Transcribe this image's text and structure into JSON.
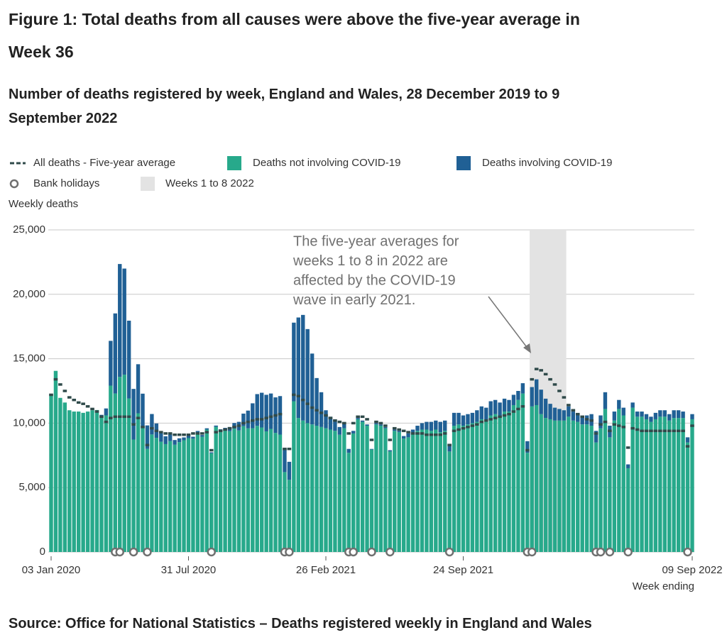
{
  "chart_data": {
    "type": "bar",
    "title": "Figure 1: Total deaths from all causes were above the five-year average in Week 36",
    "subtitle": "Number of deaths registered by week, England and Wales, 28 December 2019 to 9 September 2022",
    "y_label": "Weekly deaths",
    "x_label": "Week ending",
    "source": "Source: Office for National Statistics – Deaths registered weekly in England and Wales",
    "annotation": [
      "The five-year averages for",
      "weeks 1 to 8 in 2022 are",
      "affected by the COVID-19",
      "wave in early 2021."
    ],
    "stacked": true,
    "grid": true,
    "categories": [
      "03 Jan 2020",
      null,
      null,
      null,
      null,
      null,
      null,
      null,
      null,
      null,
      null,
      null,
      null,
      null,
      null,
      null,
      null,
      null,
      null,
      null,
      null,
      null,
      null,
      null,
      null,
      null,
      null,
      null,
      null,
      null,
      "31 Jul 2020",
      null,
      null,
      null,
      null,
      null,
      null,
      null,
      null,
      null,
      null,
      null,
      null,
      null,
      null,
      null,
      null,
      null,
      null,
      null,
      null,
      null,
      null,
      null,
      null,
      null,
      null,
      null,
      null,
      null,
      "26 Feb 2021",
      null,
      null,
      null,
      null,
      null,
      null,
      null,
      null,
      null,
      null,
      null,
      null,
      null,
      null,
      null,
      null,
      null,
      null,
      null,
      null,
      null,
      null,
      null,
      null,
      null,
      null,
      null,
      null,
      null,
      "24 Sep 2021",
      null,
      null,
      null,
      null,
      null,
      null,
      null,
      null,
      null,
      null,
      null,
      null,
      null,
      null,
      null,
      null,
      null,
      null,
      null,
      null,
      null,
      null,
      null,
      null,
      null,
      null,
      null,
      null,
      null,
      null,
      null,
      null,
      null,
      null,
      null,
      null,
      null,
      null,
      null,
      null,
      null,
      null,
      null,
      null,
      null,
      null,
      null,
      null,
      null,
      "09 Sep 2022"
    ],
    "ylim": [
      0,
      25000
    ],
    "yticks": [
      0,
      {
        "value": 5000,
        "label": "5,000"
      },
      {
        "value": 10000,
        "label": "10,000"
      },
      {
        "value": 15000,
        "label": "15,000"
      },
      {
        "value": 20000,
        "label": "20,000"
      },
      {
        "value": 25000,
        "label": "25,000"
      }
    ],
    "highlight": {
      "name": "Weeks 1 to 8 2022",
      "from": 105,
      "to": 112,
      "color": "#e3e3e3"
    },
    "series": [
      {
        "name": "All deaths - Five-year average",
        "kind": "dash",
        "color": "#2f4a4a",
        "values": [
          12200,
          13400,
          13000,
          12500,
          12000,
          11800,
          11600,
          11500,
          11300,
          11100,
          10900,
          10500,
          10100,
          10400,
          10500,
          10500,
          10500,
          10500,
          9900,
          10400,
          9700,
          8300,
          9600,
          9400,
          9300,
          9200,
          9200,
          9100,
          9100,
          9100,
          9100,
          9200,
          9200,
          9200,
          9300,
          7900,
          9300,
          9400,
          9500,
          9600,
          9700,
          9800,
          10000,
          10100,
          10200,
          10300,
          10300,
          10400,
          10500,
          10600,
          10700,
          8000,
          8000,
          12200,
          12100,
          11800,
          11500,
          11200,
          11000,
          10800,
          10600,
          10400,
          10200,
          10100,
          10000,
          9200,
          10000,
          10500,
          10500,
          10300,
          8700,
          10100,
          10000,
          9800,
          8700,
          9600,
          9500,
          9400,
          9300,
          9200,
          9200,
          9200,
          9100,
          9100,
          9100,
          9100,
          9200,
          8300,
          9400,
          9500,
          9600,
          9700,
          9800,
          9900,
          10100,
          10200,
          10300,
          10400,
          10500,
          10600,
          10700,
          10900,
          11100,
          11300,
          7900,
          13400,
          14200,
          14100,
          13800,
          13400,
          13000,
          12500,
          12000,
          11400,
          11000,
          10700,
          10500,
          10300,
          10200,
          9200,
          9900,
          10100,
          9400,
          9900,
          9800,
          9700,
          8100,
          9600,
          9500,
          9400,
          9400,
          9400,
          9400,
          9400,
          9400,
          9400,
          9400,
          9400,
          9400,
          8200,
          9800
        ]
      },
      {
        "name": "Deaths not involving COVID-19",
        "kind": "bar",
        "color": "#27a98b",
        "values": [
          12254,
          14058,
          11962,
          11600,
          11000,
          10900,
          10900,
          10800,
          10900,
          11000,
          11019,
          10545,
          10602,
          12912,
          12303,
          13593,
          13760,
          11918,
          8727,
          10763,
          9699,
          8002,
          9121,
          8862,
          8556,
          8373,
          8608,
          8324,
          8528,
          8674,
          8839,
          8794,
          9253,
          8942,
          9500,
          7661,
          9712,
          9384,
          9419,
          9379,
          9573,
          9431,
          9763,
          9595,
          9602,
          9788,
          9662,
          9363,
          9552,
          9244,
          9114,
          6200,
          5600,
          11700,
          10400,
          10200,
          10000,
          9900,
          9800,
          9700,
          9600,
          9500,
          9400,
          9100,
          9600,
          7700,
          9200,
          10300,
          10100,
          9800,
          7950,
          9900,
          9800,
          9600,
          7800,
          9400,
          9300,
          8800,
          8900,
          9200,
          9400,
          9500,
          9500,
          9400,
          9500,
          9300,
          9400,
          7800,
          9800,
          9900,
          9800,
          9900,
          10000,
          10100,
          10300,
          10200,
          10600,
          10700,
          10600,
          10900,
          10900,
          11400,
          11800,
          12300,
          7700,
          11300,
          11400,
          10700,
          10400,
          10300,
          10200,
          10200,
          10200,
          10500,
          10200,
          10100,
          9900,
          9900,
          9800,
          8500,
          9600,
          11100,
          8900,
          10200,
          11100,
          10600,
          6500,
          11200,
          10500,
          10500,
          10300,
          10100,
          10300,
          10500,
          10500,
          10200,
          10400,
          10400,
          10400,
          8500,
          10300
        ]
      },
      {
        "name": "Deaths involving COVID-19",
        "kind": "bar",
        "color": "#206095",
        "values": [
          0,
          0,
          0,
          0,
          0,
          0,
          0,
          0,
          0,
          0,
          0,
          100,
          539,
          3475,
          6213,
          8758,
          8237,
          6035,
          3930,
          3810,
          2589,
          1822,
          1588,
          1114,
          783,
          606,
          532,
          366,
          295,
          217,
          193,
          152,
          139,
          138,
          100,
          78,
          99,
          139,
          215,
          321,
          438,
          670,
          978,
          1379,
          1937,
          2466,
          2697,
          2837,
          2748,
          2756,
          2986,
          1800,
          1400,
          6100,
          7800,
          8200,
          7300,
          5500,
          3700,
          2700,
          1400,
          1000,
          900,
          600,
          400,
          300,
          200,
          100,
          100,
          100,
          50,
          100,
          100,
          100,
          100,
          100,
          100,
          200,
          300,
          300,
          400,
          500,
          600,
          700,
          700,
          800,
          800,
          600,
          1000,
          900,
          800,
          800,
          800,
          900,
          1000,
          1000,
          1100,
          1100,
          1000,
          1000,
          900,
          800,
          700,
          800,
          900,
          1500,
          2000,
          1900,
          1500,
          1200,
          1000,
          900,
          800,
          800,
          700,
          600,
          600,
          700,
          900,
          900,
          1000,
          1300,
          900,
          700,
          700,
          600,
          300,
          400,
          400,
          400,
          400,
          400,
          500,
          500,
          500,
          500,
          600,
          600,
          500,
          400,
          400
        ]
      },
      {
        "name": "Bank holidays",
        "kind": "marker",
        "color": "#707070",
        "values": [
          null,
          null,
          null,
          null,
          null,
          null,
          null,
          null,
          null,
          null,
          null,
          null,
          null,
          null,
          0,
          0,
          null,
          null,
          0,
          null,
          null,
          0,
          null,
          null,
          null,
          null,
          null,
          null,
          null,
          null,
          null,
          null,
          null,
          null,
          null,
          0,
          null,
          null,
          null,
          null,
          null,
          null,
          null,
          null,
          null,
          null,
          null,
          null,
          null,
          null,
          null,
          0,
          0,
          null,
          null,
          null,
          null,
          null,
          null,
          null,
          null,
          null,
          null,
          null,
          null,
          0,
          0,
          null,
          null,
          null,
          0,
          null,
          null,
          null,
          0,
          null,
          null,
          null,
          null,
          null,
          null,
          null,
          null,
          null,
          null,
          null,
          null,
          0,
          null,
          null,
          null,
          null,
          null,
          null,
          null,
          null,
          null,
          null,
          null,
          null,
          null,
          null,
          null,
          null,
          0,
          0,
          null,
          null,
          null,
          null,
          null,
          null,
          null,
          null,
          null,
          null,
          null,
          null,
          null,
          0,
          0,
          null,
          0,
          null,
          null,
          null,
          0,
          null,
          null,
          null,
          null,
          null,
          null,
          null,
          null,
          null,
          null,
          null,
          null,
          0,
          null
        ]
      }
    ]
  }
}
